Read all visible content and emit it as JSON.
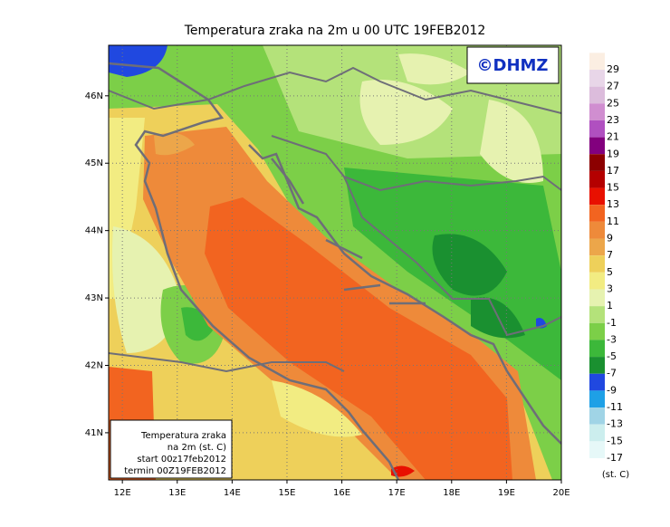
{
  "chart_data": {
    "type": "map",
    "title": "Temperatura zraka na 2m u 00 UTC 19FEB2012",
    "xlim": [
      11.75,
      20
    ],
    "ylim": [
      40.3,
      46.75
    ],
    "grid": true,
    "xticks": [
      {
        "value": 12,
        "label": "12E"
      },
      {
        "value": 13,
        "label": "13E"
      },
      {
        "value": 14,
        "label": "14E"
      },
      {
        "value": 15,
        "label": "15E"
      },
      {
        "value": 16,
        "label": "16E"
      },
      {
        "value": 17,
        "label": "17E"
      },
      {
        "value": 18,
        "label": "18E"
      },
      {
        "value": 19,
        "label": "19E"
      },
      {
        "value": 20,
        "label": "20E"
      }
    ],
    "yticks": [
      {
        "value": 41,
        "label": "41N"
      },
      {
        "value": 42,
        "label": "42N"
      },
      {
        "value": 43,
        "label": "43N"
      },
      {
        "value": 44,
        "label": "44N"
      },
      {
        "value": 45,
        "label": "45N"
      },
      {
        "value": 46,
        "label": "46N"
      }
    ],
    "colorbar": {
      "levels": [
        29,
        27,
        25,
        23,
        21,
        19,
        17,
        15,
        13,
        11,
        9,
        7,
        5,
        3,
        1,
        -1,
        -3,
        -5,
        -7,
        -9,
        -11,
        -13,
        -15,
        -17
      ],
      "colors": [
        "#fbeee2",
        "#e8d6e8",
        "#dcbcdc",
        "#d08ed0",
        "#b050c0",
        "#82007e",
        "#8c0000",
        "#b40000",
        "#e81000",
        "#f26420",
        "#ee8a3a",
        "#eca64a",
        "#eed05a",
        "#f2ec82",
        "#e6f2b0",
        "#b4e27a",
        "#7ccf48",
        "#3cb83a",
        "#1a9030",
        "#2048e0",
        "#1ea0e6",
        "#a0d4e6",
        "#cceeee",
        "#e6f8f8",
        "#ffffff"
      ],
      "unit": "(st. C)"
    },
    "info_box": [
      "Temperatura zraka",
      "na 2m (st. C)",
      "start 00z17feb2012",
      "termin 00Z19FEB2012"
    ],
    "copyright": "©DHMZ"
  }
}
